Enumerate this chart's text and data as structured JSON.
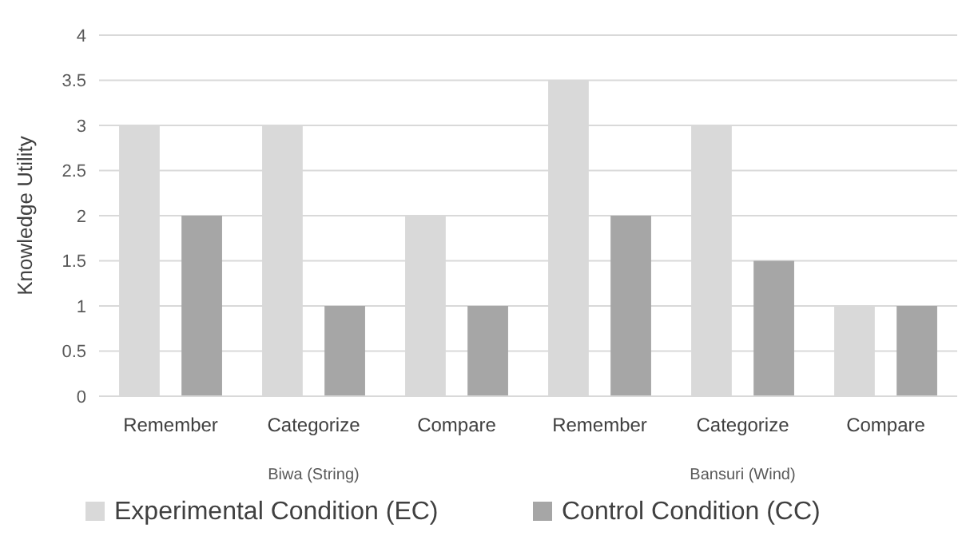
{
  "chart_data": {
    "type": "bar",
    "ylabel": "Knowledge Utility",
    "categories": [
      "Remember",
      "Categorize",
      "Compare",
      "Remember",
      "Categorize",
      "Compare"
    ],
    "series": [
      {
        "name": "Experimental Condition (EC)",
        "color": "#d9d9d9",
        "values": [
          3,
          3,
          2,
          3.5,
          3,
          1
        ]
      },
      {
        "name": "Control Condition (CC)",
        "color": "#a6a6a6",
        "values": [
          2,
          1,
          1,
          2,
          1.5,
          1
        ]
      }
    ],
    "annotations": [
      "Biwa (String)",
      "Bansuri (Wind)"
    ],
    "ylim": [
      0,
      4
    ],
    "yticks": [
      0,
      0.5,
      1,
      1.5,
      2,
      2.5,
      3,
      3.5,
      4
    ],
    "grid": "y",
    "legend": "bottom"
  }
}
